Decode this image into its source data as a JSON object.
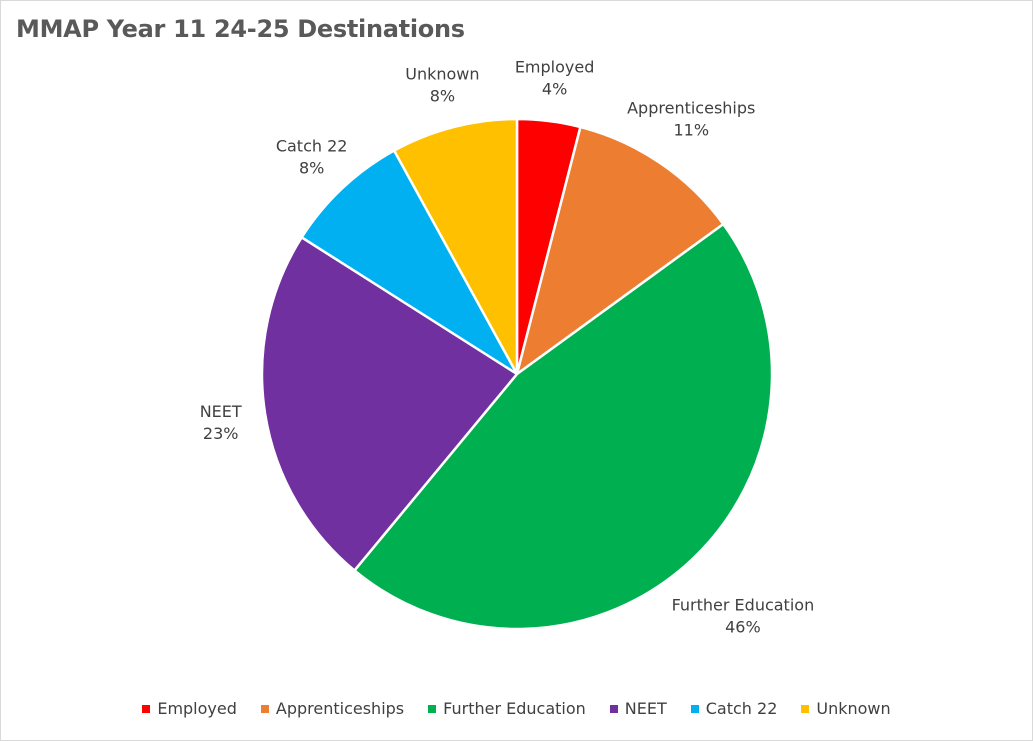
{
  "chart_data": {
    "type": "pie",
    "title": "MMAP Year 11 24-25 Destinations",
    "categories": [
      "Employed",
      "Apprenticeships",
      "Further Education",
      "NEET",
      "Catch 22",
      "Unknown"
    ],
    "values": [
      4,
      11,
      46,
      23,
      8,
      8
    ],
    "value_labels": [
      "4%",
      "11%",
      "46%",
      "23%",
      "8%",
      "8%"
    ],
    "colors": [
      "#ff0000",
      "#ed7d31",
      "#00b050",
      "#7030a0",
      "#00b0f0",
      "#ffc000"
    ],
    "legend_position": "bottom",
    "start_angle": "12 o'clock, clockwise"
  }
}
